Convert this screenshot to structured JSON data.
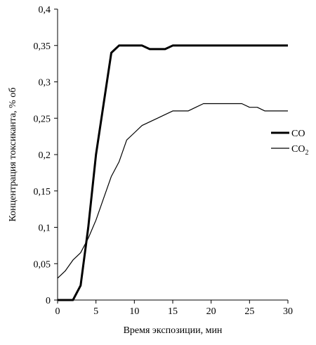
{
  "chart_data": {
    "type": "line",
    "title": "",
    "xlabel": "Время экспозиции, мин",
    "ylabel": "Концентрация токсиканта, % об",
    "xlim": [
      0,
      30
    ],
    "ylim": [
      0,
      0.4
    ],
    "x_ticks": [
      0,
      5,
      10,
      15,
      20,
      25,
      30
    ],
    "x_tick_labels": [
      "0",
      "5",
      "10",
      "15",
      "20",
      "25",
      "30"
    ],
    "y_ticks": [
      0,
      0.05,
      0.1,
      0.15,
      0.2,
      0.25,
      0.3,
      0.35,
      0.4
    ],
    "y_tick_labels": [
      "0",
      "0,05",
      "0,1",
      "0,15",
      "0,2",
      "0,25",
      "0,3",
      "0,35",
      "0,4"
    ],
    "grid": false,
    "legend_position": "right",
    "series": [
      {
        "name": "CO",
        "label_main": "CO",
        "label_sub": "",
        "color": "#000000",
        "style": "thick",
        "x": [
          0,
          1,
          2,
          3,
          4,
          5,
          6,
          7,
          8,
          9,
          10,
          11,
          12,
          13,
          14,
          15,
          16,
          17,
          18,
          19,
          20,
          21,
          22,
          23,
          24,
          25,
          26,
          27,
          28,
          29,
          30
        ],
        "y": [
          0,
          0,
          0,
          0.02,
          0.1,
          0.2,
          0.27,
          0.34,
          0.35,
          0.35,
          0.35,
          0.35,
          0.345,
          0.345,
          0.345,
          0.35,
          0.35,
          0.35,
          0.35,
          0.35,
          0.35,
          0.35,
          0.35,
          0.35,
          0.35,
          0.35,
          0.35,
          0.35,
          0.35,
          0.35,
          0.35
        ]
      },
      {
        "name": "CO2",
        "label_main": "CO",
        "label_sub": "2",
        "color": "#000000",
        "style": "thin",
        "x": [
          0,
          1,
          2,
          3,
          4,
          5,
          6,
          7,
          8,
          9,
          10,
          11,
          12,
          13,
          14,
          15,
          16,
          17,
          18,
          19,
          20,
          21,
          22,
          23,
          24,
          25,
          26,
          27,
          28,
          29,
          30
        ],
        "y": [
          0.03,
          0.04,
          0.055,
          0.065,
          0.085,
          0.11,
          0.14,
          0.17,
          0.19,
          0.22,
          0.23,
          0.24,
          0.245,
          0.25,
          0.255,
          0.26,
          0.26,
          0.26,
          0.265,
          0.27,
          0.27,
          0.27,
          0.27,
          0.27,
          0.27,
          0.265,
          0.265,
          0.26,
          0.26,
          0.26,
          0.26
        ]
      }
    ]
  }
}
